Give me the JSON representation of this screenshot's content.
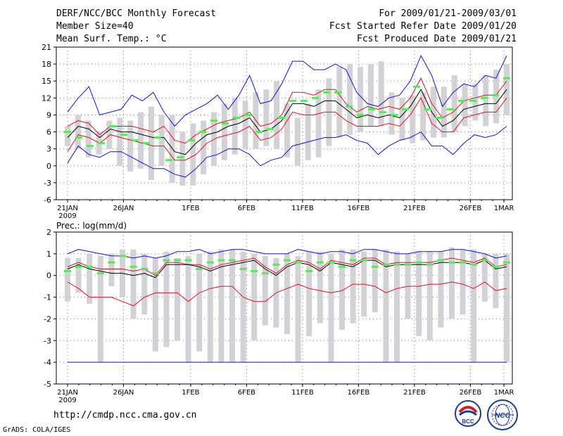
{
  "header": {
    "title": "DERF/NCC/BCC Monthly Forecast",
    "member_size": "Member Size=40",
    "variable": "Mean Surf. Temp.: °C",
    "forecast_period": "For 2009/01/21-2009/03/01",
    "started_refer": "Fcst Started Refer Date 2009/01/20",
    "produced": "Fcst Produced Date 2009/01/21"
  },
  "footer": {
    "url": "http://cmdp.ncc.cma.gov.cn",
    "grads": "GrADS: COLA/IGES"
  },
  "logos": {
    "bcc_text": "BCC",
    "ncc_text": "NCC"
  },
  "colors": {
    "max_line": "#1010e0",
    "min_line": "#1010e0",
    "pct_line": "#e01020",
    "mean_line": "#000000",
    "box": "#d2d2d6",
    "obs_mark": "#58e858",
    "grid": "#777777"
  },
  "chart_data": [
    {
      "type": "line",
      "title": "Mean Surf. Temp.: °C",
      "ylabel": "°C",
      "ylim": [
        -6,
        21
      ],
      "yticks": [
        -6,
        -3,
        0,
        3,
        6,
        9,
        12,
        15,
        18,
        21
      ],
      "xticks": [
        {
          "day": 0,
          "label": "21JAN",
          "sub": "2009"
        },
        {
          "day": 5,
          "label": "26JAN"
        },
        {
          "day": 11,
          "label": "1FEB"
        },
        {
          "day": 16,
          "label": "6FEB"
        },
        {
          "day": 21,
          "label": "11FEB"
        },
        {
          "day": 26,
          "label": "16FEB"
        },
        {
          "day": 31,
          "label": "21FEB"
        },
        {
          "day": 36,
          "label": "26FEB"
        },
        {
          "day": 39,
          "label": "1MAR"
        }
      ],
      "box_low": [
        3.5,
        3,
        1.5,
        2,
        3,
        0,
        -1,
        -0.5,
        -2.5,
        0,
        -3,
        -3.5,
        -3.5,
        -1.5,
        0,
        1,
        2,
        3,
        3,
        3.5,
        3,
        1.5,
        0,
        1,
        1.5,
        3.5,
        5,
        5.5,
        6,
        7,
        7,
        5.5,
        4.5,
        4,
        4.5,
        5,
        5,
        6,
        7,
        8,
        7,
        7.5,
        9
      ],
      "box_high": [
        7,
        9,
        8,
        6,
        8,
        8.5,
        8,
        9.5,
        10.5,
        9,
        9,
        6,
        7.5,
        8,
        9.5,
        11,
        12,
        11.5,
        13,
        13.5,
        15,
        11,
        8.5,
        11,
        13.5,
        15.5,
        17.5,
        18,
        17.5,
        18,
        18.5,
        13,
        12,
        12.5,
        13,
        14,
        14,
        16,
        14.5,
        14.5,
        16,
        17,
        18
      ],
      "series": [
        {
          "name": "max",
          "color": "#1010e0",
          "values": [
            9.5,
            12,
            14,
            9,
            9.5,
            10,
            12.5,
            11.5,
            13,
            9.5,
            7,
            9,
            10,
            11,
            12.5,
            10,
            12.5,
            16,
            11,
            11.5,
            14.5,
            18.5,
            18.5,
            17,
            17,
            18,
            17,
            13,
            11,
            10.5,
            12,
            12.5,
            15,
            19.5,
            16,
            10.5,
            13,
            14.5,
            14,
            16,
            15.5,
            19.5
          ]
        },
        {
          "name": "p90",
          "color": "#e01020",
          "values": [
            7,
            8,
            7.5,
            5.5,
            7,
            7,
            7,
            6.5,
            6,
            7,
            4.5,
            4,
            5.5,
            6.5,
            7.5,
            8,
            8.5,
            9.5,
            7,
            7.5,
            9,
            13,
            13,
            12.5,
            13.5,
            13.5,
            11,
            9.5,
            10.5,
            10,
            10.5,
            10,
            12,
            15.5,
            11,
            8.5,
            9.5,
            11.5,
            12,
            12.5,
            12.5,
            15
          ]
        },
        {
          "name": "mean",
          "color": "#000000",
          "values": [
            5,
            7,
            6.5,
            5,
            6.5,
            6,
            6,
            5.5,
            5,
            5,
            2.5,
            2,
            4,
            5.5,
            6,
            7,
            7.5,
            8.5,
            6,
            6.5,
            8,
            11,
            11,
            10.5,
            11.5,
            11.5,
            10,
            8.5,
            9,
            8.5,
            9,
            8.5,
            10.5,
            13.5,
            9.5,
            7,
            8,
            10,
            10.5,
            11,
            11,
            13.5
          ]
        },
        {
          "name": "p10",
          "color": "#e01020",
          "values": [
            2.5,
            5.5,
            5,
            4,
            5.5,
            5,
            4.5,
            4,
            3.5,
            3.5,
            1,
            1,
            2,
            4,
            5,
            5.5,
            6,
            7,
            4.5,
            5,
            6.5,
            9.5,
            9,
            9,
            9.5,
            9.5,
            8,
            7,
            7,
            7,
            7.5,
            7,
            9,
            12,
            7.5,
            6,
            6,
            8.5,
            9,
            9.5,
            9.5,
            12
          ]
        },
        {
          "name": "min",
          "color": "#1010e0",
          "values": [
            0.5,
            3.5,
            2,
            1.5,
            2.5,
            2.5,
            1.5,
            0.5,
            -0.5,
            -0.5,
            -1.5,
            -2,
            -0.5,
            1.5,
            2,
            3,
            3,
            2,
            0,
            1,
            1.5,
            3.5,
            4,
            4.5,
            5,
            5,
            5.5,
            4.5,
            4,
            2,
            3.5,
            4.5,
            5,
            6,
            3.5,
            3.5,
            2,
            4,
            5.5,
            5,
            5.5,
            7
          ]
        }
      ],
      "obs": [
        6,
        5,
        3.5,
        4,
        7,
        5.5,
        4.5,
        4,
        5,
        1,
        1.5,
        4.5,
        6,
        8,
        7.5,
        8.5,
        9,
        6,
        6.5,
        8.5,
        11.5,
        11.5,
        12,
        13,
        13,
        10.5,
        9,
        10,
        9.5,
        9,
        10,
        14,
        10,
        8.5,
        10,
        11.5,
        11.5,
        12,
        12.5,
        15.5
      ]
    },
    {
      "type": "line",
      "title": "Prec.: log(mm/d)",
      "ylabel": "log(mm/d)",
      "ylim": [
        -5,
        2
      ],
      "yticks": [
        -5,
        -4,
        -3,
        -2,
        -1,
        0,
        1,
        2
      ],
      "xticks": [
        {
          "day": 0,
          "label": "21JAN",
          "sub": "2009"
        },
        {
          "day": 5,
          "label": "26JAN"
        },
        {
          "day": 11,
          "label": "1FEB"
        },
        {
          "day": 16,
          "label": "6FEB"
        },
        {
          "day": 21,
          "label": "11FEB"
        },
        {
          "day": 26,
          "label": "16FEB"
        },
        {
          "day": 31,
          "label": "21FEB"
        },
        {
          "day": 36,
          "label": "26FEB"
        },
        {
          "day": 39,
          "label": "1MAR"
        }
      ],
      "box_low": [
        -1.2,
        -0.8,
        -1.3,
        -4,
        -0.5,
        -1,
        -2,
        -1.8,
        -3.5,
        -3.3,
        -3,
        -4,
        -3.5,
        -4,
        -4,
        -4,
        -4,
        -3,
        -2.3,
        -2.4,
        -2.7,
        -4,
        -2.8,
        -2.2,
        -4,
        -2.5,
        -2.2,
        -1.9,
        -1.7,
        -4,
        -4,
        -2,
        -2.8,
        -3,
        -2.4,
        -2,
        -1.8,
        -4,
        -1.2,
        -1.5,
        -4
      ],
      "box_high": [
        0.8,
        0.8,
        1,
        0.9,
        1,
        1.2,
        1.2,
        1,
        0.8,
        1.1,
        0.8,
        0.9,
        1,
        1.1,
        1.2,
        1.2,
        1.1,
        1,
        0.9,
        0.8,
        1,
        0.9,
        1.1,
        1.1,
        1,
        1.2,
        1.2,
        1.1,
        1.2,
        1.2,
        1.1,
        1,
        1.1,
        1.1,
        1.1,
        1.3,
        1.2,
        1.2,
        1,
        1,
        1
      ],
      "series": [
        {
          "name": "max",
          "color": "#1010e0",
          "values": [
            1,
            1.2,
            1.1,
            1,
            0.9,
            0.9,
            0.8,
            0.9,
            0.8,
            0.9,
            1.1,
            1.1,
            1.2,
            1,
            1.1,
            1.2,
            1.2,
            1.1,
            1,
            1,
            1,
            1.2,
            1.1,
            1,
            1.1,
            1.1,
            1,
            1.2,
            1.2,
            1.1,
            1,
            1,
            1.1,
            1.1,
            1.1,
            1.2,
            1.2,
            1.1,
            1,
            0.8,
            0.9
          ]
        },
        {
          "name": "p90",
          "color": "#e01020",
          "values": [
            0.4,
            0.6,
            0.4,
            0.3,
            0.3,
            0.3,
            0.2,
            0.3,
            0,
            0.6,
            0.6,
            0.5,
            0.5,
            0.3,
            0.5,
            0.6,
            0.7,
            0.8,
            0.4,
            0.1,
            0.5,
            0.7,
            0.6,
            0.3,
            0.7,
            0.6,
            0.5,
            0.8,
            0.8,
            0.5,
            0.6,
            0.6,
            0.6,
            0.6,
            0.7,
            0.8,
            0.7,
            0.6,
            0.8,
            0.4,
            0.5
          ]
        },
        {
          "name": "mean",
          "color": "#000000",
          "values": [
            0.3,
            0.5,
            0.3,
            0.2,
            0.1,
            0.1,
            0,
            0.1,
            -0.1,
            0.5,
            0.5,
            0.5,
            0.4,
            0.2,
            0.4,
            0.5,
            0.6,
            0.7,
            0.3,
            0,
            0.4,
            0.6,
            0.5,
            0.2,
            0.6,
            0.5,
            0.4,
            0.7,
            0.7,
            0.4,
            0.5,
            0.5,
            0.5,
            0.5,
            0.6,
            0.6,
            0.6,
            0.5,
            0.7,
            0.3,
            0.4
          ]
        },
        {
          "name": "p10",
          "color": "#e01020",
          "values": [
            -0.3,
            -0.6,
            -1,
            -1,
            -1,
            -1.2,
            -1.4,
            -1,
            -0.8,
            -0.8,
            -0.8,
            -1.2,
            -0.8,
            -0.6,
            -0.5,
            -0.5,
            -1,
            -1.2,
            -1.2,
            -0.8,
            -0.6,
            -0.4,
            -0.6,
            -0.7,
            -0.8,
            -0.7,
            -0.4,
            -0.4,
            -0.5,
            -0.8,
            -0.6,
            -0.5,
            -0.5,
            -0.4,
            -0.4,
            -0.3,
            -0.4,
            -0.6,
            -0.3,
            -0.7,
            -0.6
          ]
        },
        {
          "name": "min",
          "color": "#1010e0",
          "values": [
            -4,
            -4,
            -4,
            -4,
            -4,
            -4,
            -4,
            -4,
            -4,
            -4,
            -4,
            -4,
            -4,
            -4,
            -4,
            -4,
            -4,
            -4,
            -4,
            -4,
            -4,
            -4,
            -4,
            -4,
            -4,
            -4,
            -4,
            -4,
            -4,
            -4,
            -4,
            -4,
            -4,
            -4,
            -4,
            -4,
            -4,
            -4,
            -4,
            -4,
            -4
          ]
        }
      ],
      "obs": [
        0.2,
        0.4,
        0.4,
        0.1,
        0.6,
        0.9,
        0.4,
        0.3,
        0.1,
        0.7,
        0.7,
        0.7,
        0.3,
        0.6,
        0.7,
        0.7,
        0.3,
        0.2,
        0.1,
        0.5,
        0.7,
        0.6,
        0.2,
        0.6,
        0.6,
        0.4,
        0.7,
        0.7,
        0.4,
        0.5,
        0.5,
        0.5,
        0.6,
        0.5,
        0.7,
        0.6,
        0.6,
        0.5,
        0.7,
        0.4,
        0.6
      ]
    }
  ]
}
